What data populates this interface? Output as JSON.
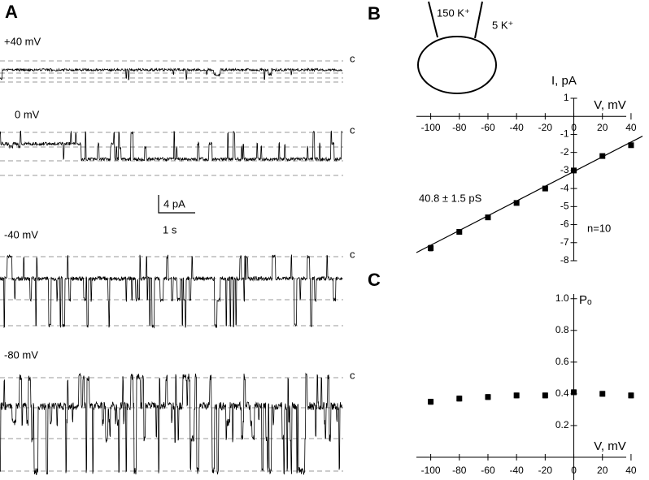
{
  "panel_a": {
    "letter": "A",
    "traces": [
      {
        "label": "+40 mV",
        "state": "c"
      },
      {
        "label": "0 mV",
        "state": "c"
      },
      {
        "label": "-40 mV",
        "state": "c"
      },
      {
        "label": "-80 mV",
        "state": "c"
      }
    ],
    "scale_bar": {
      "current": "4 pA",
      "time": "1 s"
    }
  },
  "chart_data": [
    {
      "type": "scatter",
      "letter": "B",
      "pipette": "150 K⁺",
      "bath": "5 K⁺",
      "xlabel": "V, mV",
      "ylabel": "I, pA",
      "x": [
        -100,
        -80,
        -60,
        -40,
        -20,
        0,
        20,
        40
      ],
      "values": [
        -7.3,
        -6.4,
        -5.6,
        -4.8,
        -4.0,
        -3.0,
        -2.2,
        -1.6
      ],
      "errors": [
        0.15,
        0.12,
        0.12,
        0.1,
        0.1,
        0.12,
        0.08,
        0.08
      ],
      "fit": {
        "x": [
          -110,
          48
        ],
        "y": [
          -7.55,
          -1.1
        ]
      },
      "annotations": [
        "40.8 ± 1.5 pS",
        "n=10"
      ],
      "xlim": [
        -110,
        48
      ],
      "ylim": [
        -8,
        1
      ],
      "xticks": [
        -100,
        -80,
        -60,
        -40,
        -20,
        0,
        20,
        40
      ],
      "yticks": [
        1,
        -1,
        -2,
        -3,
        -4,
        -5,
        -6,
        -7,
        -8
      ],
      "color": "#000000"
    },
    {
      "type": "scatter",
      "letter": "C",
      "xlabel": "V, mV",
      "ylabel": "Pₒ",
      "x": [
        -100,
        -80,
        -60,
        -40,
        -20,
        0,
        20,
        40
      ],
      "values": [
        0.35,
        0.37,
        0.38,
        0.39,
        0.39,
        0.41,
        0.4,
        0.39
      ],
      "errors": [
        0.015,
        0.015,
        0.015,
        0.015,
        0.015,
        0.015,
        0.015,
        0.015
      ],
      "xlim": [
        -110,
        48
      ],
      "ylim": [
        0,
        1.05
      ],
      "xticks": [
        -100,
        -80,
        -60,
        -40,
        -20,
        0,
        20,
        40
      ],
      "yticks": [
        {
          "value": 1.0,
          "label": "1.0"
        },
        0.8,
        0.6,
        0.4,
        0.2
      ],
      "color": "#000000"
    }
  ]
}
